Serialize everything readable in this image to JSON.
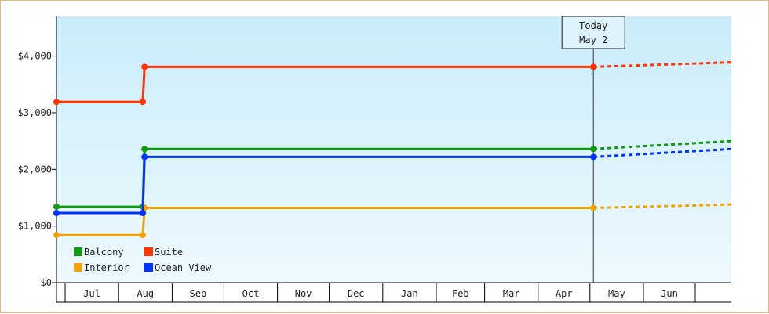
{
  "chart_data": {
    "type": "line",
    "step": true,
    "title": "",
    "xlabel": "",
    "ylabel": "",
    "y_ticks": [
      0,
      1000,
      2000,
      3000,
      4000
    ],
    "y_tick_labels": [
      "$0",
      "$1,000",
      "$2,000",
      "$3,000",
      "$4,000"
    ],
    "ylim": [
      0,
      4700
    ],
    "x_months": [
      "Jul",
      "Aug",
      "Sep",
      "Oct",
      "Nov",
      "Dec",
      "Jan",
      "Feb",
      "Mar",
      "Apr",
      "May",
      "Jun"
    ],
    "x_month_days": [
      31,
      31,
      30,
      31,
      30,
      31,
      31,
      28,
      31,
      30,
      31,
      30
    ],
    "x_start_day": 26,
    "x_end_day": 33,
    "x_first_month": "Jun",
    "grid": false,
    "legend_position": "bottom-left",
    "today": {
      "label": "Today",
      "date": "May 2",
      "day": 311
    },
    "series": [
      {
        "name": "Balcony",
        "color": "#119911",
        "points": [
          {
            "date": "Jun 26",
            "day": 0,
            "value": 1340
          },
          {
            "date": "Aug 15",
            "day": 50,
            "value": 1340
          },
          {
            "date": "Aug 16",
            "day": 51,
            "value": 2360
          },
          {
            "date": "May 2",
            "day": 311,
            "value": 2360
          }
        ],
        "forecast_end": 2500
      },
      {
        "name": "Suite",
        "color": "#ff3300",
        "points": [
          {
            "date": "Jun 26",
            "day": 0,
            "value": 3190
          },
          {
            "date": "Aug 15",
            "day": 50,
            "value": 3190
          },
          {
            "date": "Aug 16",
            "day": 51,
            "value": 3810
          },
          {
            "date": "May 2",
            "day": 311,
            "value": 3810
          }
        ],
        "forecast_end": 3890
      },
      {
        "name": "Interior",
        "color": "#f5a300",
        "points": [
          {
            "date": "Jun 26",
            "day": 0,
            "value": 840
          },
          {
            "date": "Aug 15",
            "day": 50,
            "value": 840
          },
          {
            "date": "Aug 16",
            "day": 51,
            "value": 1320
          },
          {
            "date": "May 2",
            "day": 311,
            "value": 1320
          }
        ],
        "forecast_end": 1380
      },
      {
        "name": "Ocean View",
        "color": "#0033ff",
        "points": [
          {
            "date": "Jun 26",
            "day": 0,
            "value": 1230
          },
          {
            "date": "Aug 15",
            "day": 50,
            "value": 1230
          },
          {
            "date": "Aug 16",
            "day": 51,
            "value": 2220
          },
          {
            "date": "May 2",
            "day": 311,
            "value": 2220
          }
        ],
        "forecast_end": 2360
      }
    ]
  }
}
